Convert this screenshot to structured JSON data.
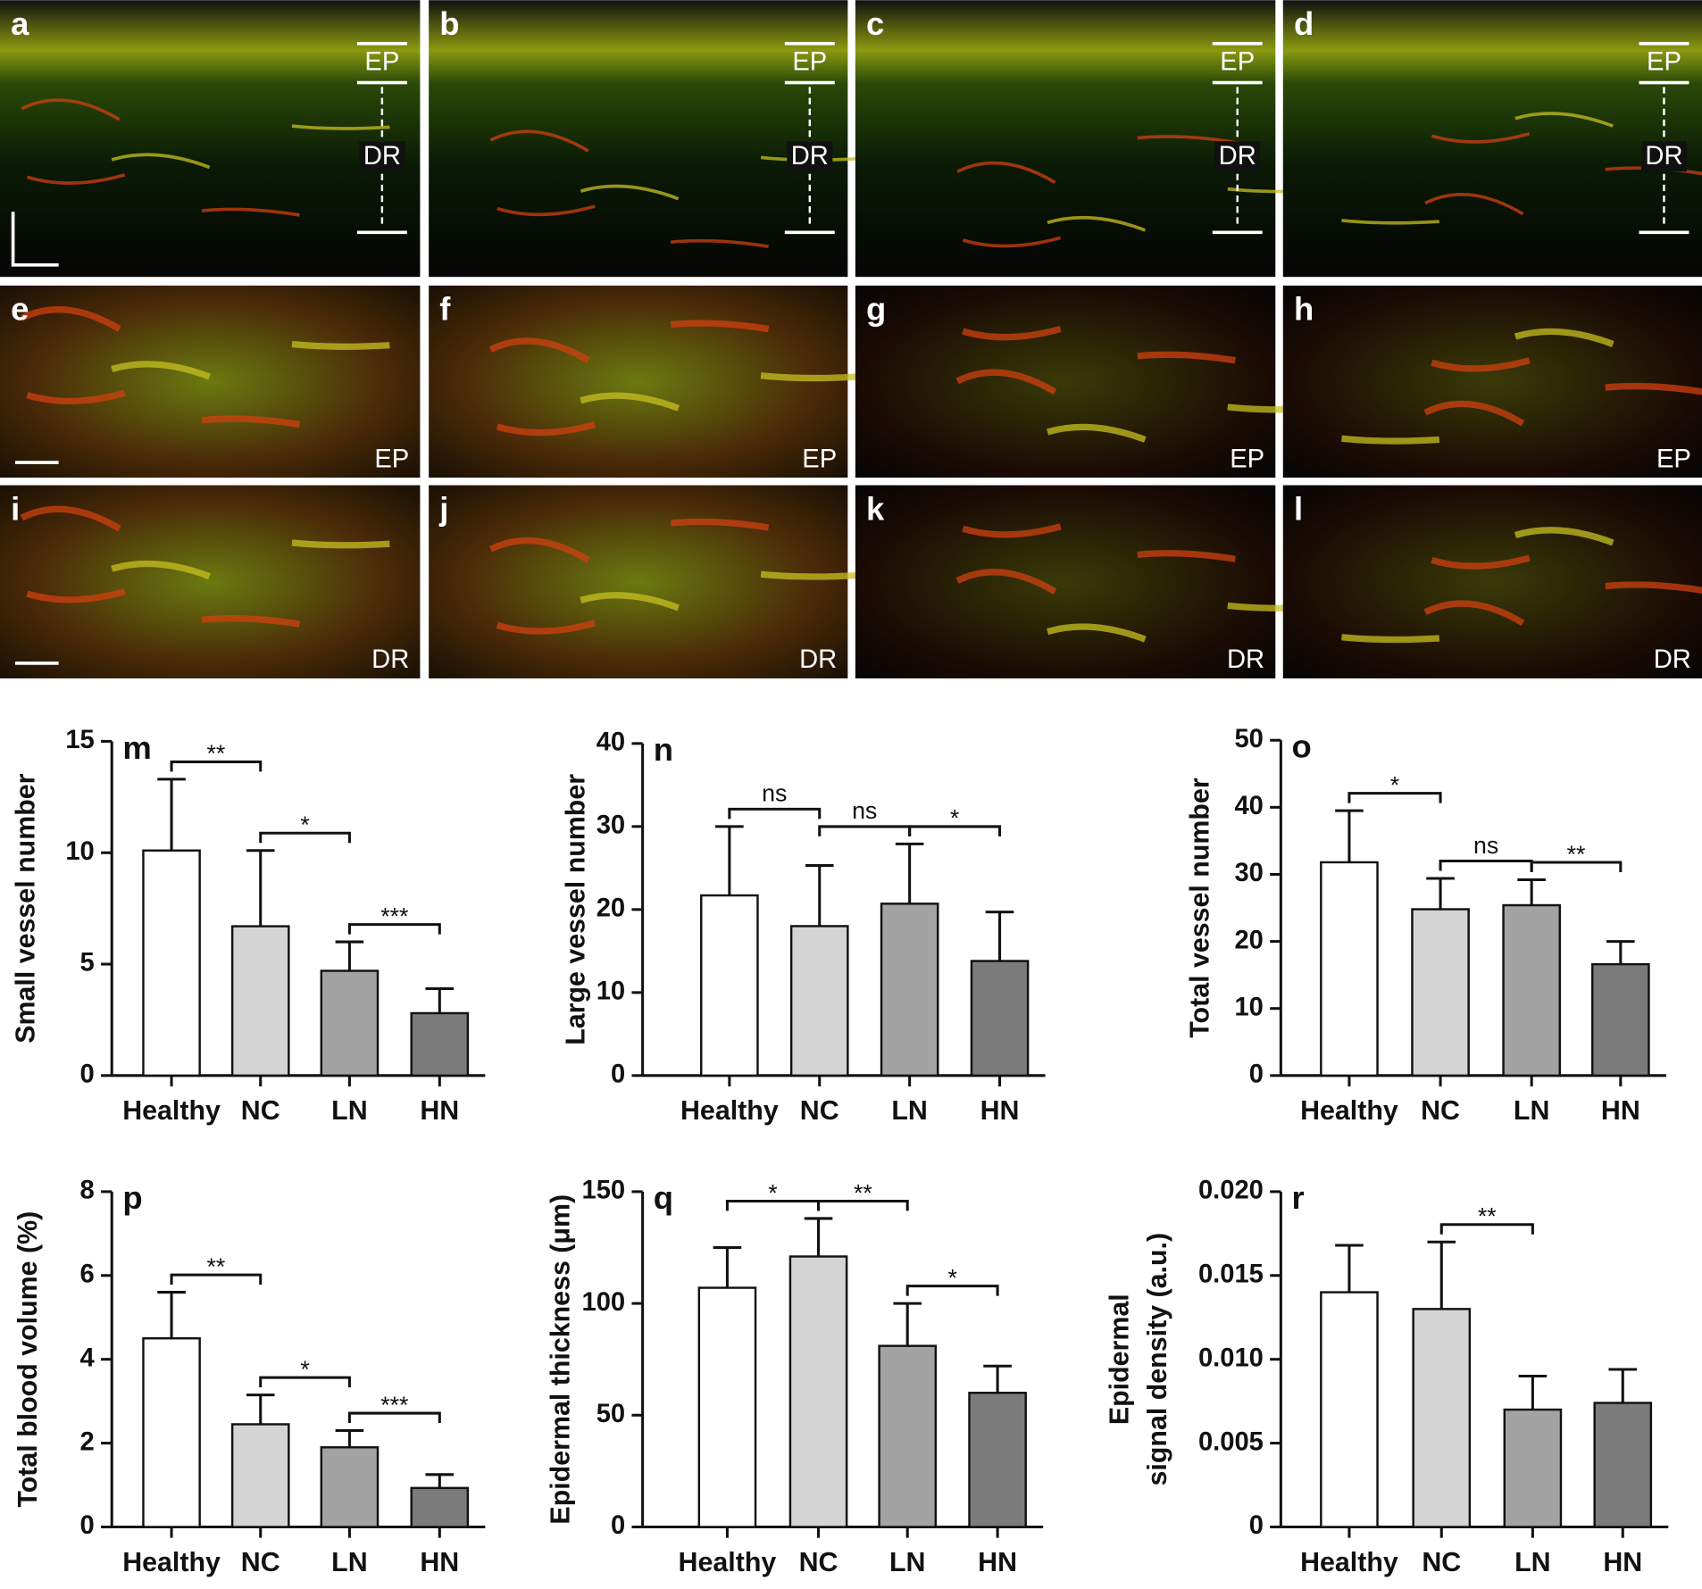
{
  "image_panels": [
    {
      "label": "a",
      "layers": [
        "EP",
        "DR"
      ]
    },
    {
      "label": "b",
      "layers": [
        "EP",
        "DR"
      ]
    },
    {
      "label": "c",
      "layers": [
        "EP",
        "DR"
      ]
    },
    {
      "label": "d",
      "layers": [
        "EP",
        "DR"
      ]
    },
    {
      "label": "e",
      "layers": [
        "EP"
      ]
    },
    {
      "label": "f",
      "layers": [
        "EP"
      ]
    },
    {
      "label": "g",
      "layers": [
        "EP"
      ]
    },
    {
      "label": "h",
      "layers": [
        "EP"
      ]
    },
    {
      "label": "i",
      "layers": [
        "DR"
      ]
    },
    {
      "label": "j",
      "layers": [
        "DR"
      ]
    },
    {
      "label": "k",
      "layers": [
        "DR"
      ]
    },
    {
      "label": "l",
      "layers": [
        "DR"
      ]
    }
  ],
  "chart_data": [
    {
      "type": "bar",
      "panel": "m",
      "ylabel": [
        "Small vessel number"
      ],
      "categories": [
        "Healthy",
        "NC",
        "LN",
        "HN"
      ],
      "values": [
        10.1,
        6.7,
        4.7,
        2.8
      ],
      "errors": [
        3.2,
        3.4,
        1.3,
        1.1
      ],
      "colors": [
        "#ffffff",
        "#d4d4d4",
        "#a3a3a3",
        "#7b7b7b"
      ],
      "ylim": [
        0,
        15
      ],
      "yticks": [
        0,
        5,
        10,
        15
      ],
      "significance": [
        {
          "pair": [
            "Healthy",
            "NC"
          ],
          "label": "**"
        },
        {
          "pair": [
            "NC",
            "LN"
          ],
          "label": "*"
        },
        {
          "pair": [
            "LN",
            "HN"
          ],
          "label": "***"
        }
      ]
    },
    {
      "type": "bar",
      "panel": "n",
      "ylabel": [
        "Large vessel number"
      ],
      "categories": [
        "Healthy",
        "NC",
        "LN",
        "HN"
      ],
      "values": [
        21.7,
        18,
        20.7,
        13.8
      ],
      "errors": [
        8.3,
        7.3,
        7.2,
        5.9
      ],
      "colors": [
        "#ffffff",
        "#d4d4d4",
        "#a3a3a3",
        "#7b7b7b"
      ],
      "ylim": [
        0,
        40
      ],
      "yticks": [
        0,
        10,
        20,
        30,
        40
      ],
      "significance": [
        {
          "pair": [
            "Healthy",
            "NC"
          ],
          "label": "ns"
        },
        {
          "pair": [
            "NC",
            "LN"
          ],
          "label": "ns"
        },
        {
          "pair": [
            "LN",
            "HN"
          ],
          "label": "*"
        }
      ]
    },
    {
      "type": "bar",
      "panel": "o",
      "ylabel": [
        "Total vessel number"
      ],
      "categories": [
        "Healthy",
        "NC",
        "LN",
        "HN"
      ],
      "values": [
        31.8,
        24.8,
        25.4,
        16.6
      ],
      "errors": [
        7.7,
        4.6,
        3.8,
        3.4
      ],
      "colors": [
        "#ffffff",
        "#d4d4d4",
        "#a3a3a3",
        "#7b7b7b"
      ],
      "ylim": [
        0,
        50
      ],
      "yticks": [
        0,
        10,
        20,
        30,
        40,
        50
      ],
      "significance": [
        {
          "pair": [
            "Healthy",
            "NC"
          ],
          "label": "*"
        },
        {
          "pair": [
            "NC",
            "LN"
          ],
          "label": "ns"
        },
        {
          "pair": [
            "LN",
            "HN"
          ],
          "label": "**"
        }
      ]
    },
    {
      "type": "bar",
      "panel": "p",
      "ylabel": [
        "Total blood volume (%)"
      ],
      "categories": [
        "Healthy",
        "NC",
        "LN",
        "HN"
      ],
      "values": [
        4.5,
        2.45,
        1.9,
        0.93
      ],
      "errors": [
        1.1,
        0.7,
        0.4,
        0.32
      ],
      "colors": [
        "#ffffff",
        "#d4d4d4",
        "#a3a3a3",
        "#7b7b7b"
      ],
      "ylim": [
        0,
        8
      ],
      "yticks": [
        0,
        2,
        4,
        6,
        8
      ],
      "significance": [
        {
          "pair": [
            "Healthy",
            "NC"
          ],
          "label": "**"
        },
        {
          "pair": [
            "NC",
            "LN"
          ],
          "label": "*"
        },
        {
          "pair": [
            "LN",
            "HN"
          ],
          "label": "***"
        }
      ]
    },
    {
      "type": "bar",
      "panel": "q",
      "ylabel": [
        "Epidermal thickness (μm)"
      ],
      "categories": [
        "Healthy",
        "NC",
        "LN",
        "HN"
      ],
      "values": [
        107,
        121,
        81,
        60
      ],
      "errors": [
        18,
        17,
        19,
        12
      ],
      "colors": [
        "#ffffff",
        "#d4d4d4",
        "#a3a3a3",
        "#7b7b7b"
      ],
      "ylim": [
        0,
        150
      ],
      "yticks": [
        0,
        50,
        100,
        150
      ],
      "significance": [
        {
          "pair": [
            "Healthy",
            "NC"
          ],
          "label": "*"
        },
        {
          "pair": [
            "NC",
            "LN"
          ],
          "label": "**"
        },
        {
          "pair": [
            "LN",
            "HN"
          ],
          "label": "*"
        }
      ]
    },
    {
      "type": "bar",
      "panel": "r",
      "ylabel": [
        "Epidermal",
        "signal density (a.u.)"
      ],
      "categories": [
        "Healthy",
        "NC",
        "LN",
        "HN"
      ],
      "values": [
        0.014,
        0.013,
        0.007,
        0.0074
      ],
      "errors": [
        0.0028,
        0.004,
        0.002,
        0.002
      ],
      "colors": [
        "#ffffff",
        "#d4d4d4",
        "#a3a3a3",
        "#7b7b7b"
      ],
      "ylim": [
        0,
        0.02
      ],
      "yticks": [
        0,
        0.005,
        {
          "value": 0.01,
          "label": "0.010"
        },
        0.015,
        {
          "value": 0.02,
          "label": "0.020"
        }
      ],
      "significance": [
        {
          "pair": [
            "NC",
            "LN"
          ],
          "label": "**"
        }
      ]
    }
  ]
}
